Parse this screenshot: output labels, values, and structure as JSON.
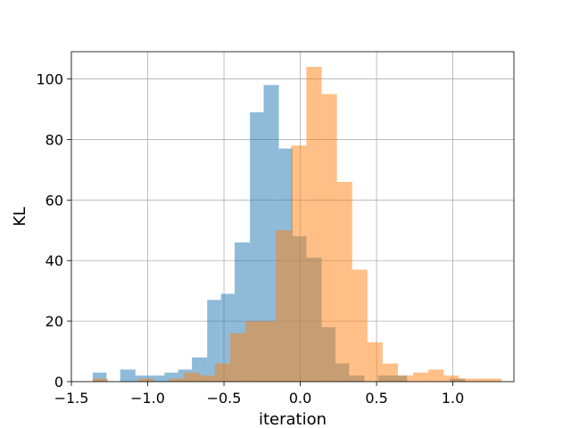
{
  "chart_data": {
    "type": "bar",
    "subtype": "overlapping histogram",
    "title": "",
    "xlabel": "iteration",
    "ylabel": "KL",
    "xlim": [
      -1.5,
      1.4
    ],
    "ylim": [
      0,
      109
    ],
    "xticks": [
      -1.5,
      -1.0,
      -0.5,
      0.0,
      0.5,
      1.0
    ],
    "xtick_labels": [
      "−1.5",
      "−1.0",
      "−0.5",
      "0.0",
      "0.5",
      "1.0"
    ],
    "yticks": [
      0,
      20,
      40,
      60,
      80,
      100
    ],
    "ytick_labels": [
      "0",
      "20",
      "40",
      "60",
      "80",
      "100"
    ],
    "grid": true,
    "legend": "none",
    "bar_opacity": 0.5,
    "series": [
      {
        "color": "#1f77b4",
        "bins": [
          {
            "x0": -1.36,
            "x1": -1.27,
            "value": 3
          },
          {
            "x0": -1.27,
            "x1": -1.18,
            "value": 0
          },
          {
            "x0": -1.18,
            "x1": -1.08,
            "value": 4
          },
          {
            "x0": -1.08,
            "x1": -0.99,
            "value": 2
          },
          {
            "x0": -0.99,
            "x1": -0.89,
            "value": 2
          },
          {
            "x0": -0.89,
            "x1": -0.8,
            "value": 3
          },
          {
            "x0": -0.8,
            "x1": -0.71,
            "value": 4
          },
          {
            "x0": -0.71,
            "x1": -0.61,
            "value": 8
          },
          {
            "x0": -0.61,
            "x1": -0.52,
            "value": 27
          },
          {
            "x0": -0.52,
            "x1": -0.43,
            "value": 29
          },
          {
            "x0": -0.43,
            "x1": -0.33,
            "value": 46
          },
          {
            "x0": -0.33,
            "x1": -0.24,
            "value": 89
          },
          {
            "x0": -0.24,
            "x1": -0.14,
            "value": 98
          },
          {
            "x0": -0.14,
            "x1": -0.05,
            "value": 77
          },
          {
            "x0": -0.05,
            "x1": 0.04,
            "value": 48
          },
          {
            "x0": 0.04,
            "x1": 0.14,
            "value": 41
          },
          {
            "x0": 0.14,
            "x1": 0.23,
            "value": 18
          },
          {
            "x0": 0.23,
            "x1": 0.32,
            "value": 6
          },
          {
            "x0": 0.32,
            "x1": 0.42,
            "value": 2
          },
          {
            "x0": 0.42,
            "x1": 0.51,
            "value": 0
          },
          {
            "x0": 0.51,
            "x1": 0.61,
            "value": 2
          },
          {
            "x0": 0.61,
            "x1": 0.7,
            "value": 2
          },
          {
            "x0": 0.7,
            "x1": 0.79,
            "value": 0
          },
          {
            "x0": 0.79,
            "x1": 0.89,
            "value": 0
          },
          {
            "x0": 0.89,
            "x1": 0.98,
            "value": 0
          },
          {
            "x0": 0.98,
            "x1": 1.08,
            "value": 1
          }
        ]
      },
      {
        "color": "#ff7f0e",
        "bins": [
          {
            "x0": -1.36,
            "x1": -1.26,
            "value": 1
          },
          {
            "x0": -1.26,
            "x1": -1.16,
            "value": 0
          },
          {
            "x0": -1.16,
            "x1": -1.06,
            "value": 0
          },
          {
            "x0": -1.06,
            "x1": -0.96,
            "value": 1
          },
          {
            "x0": -0.96,
            "x1": -0.86,
            "value": 0
          },
          {
            "x0": -0.86,
            "x1": -0.76,
            "value": 1
          },
          {
            "x0": -0.76,
            "x1": -0.66,
            "value": 3
          },
          {
            "x0": -0.66,
            "x1": -0.56,
            "value": 2
          },
          {
            "x0": -0.56,
            "x1": -0.46,
            "value": 6
          },
          {
            "x0": -0.46,
            "x1": -0.36,
            "value": 16
          },
          {
            "x0": -0.36,
            "x1": -0.26,
            "value": 20
          },
          {
            "x0": -0.26,
            "x1": -0.16,
            "value": 20
          },
          {
            "x0": -0.16,
            "x1": -0.06,
            "value": 50
          },
          {
            "x0": -0.06,
            "x1": 0.04,
            "value": 78
          },
          {
            "x0": 0.04,
            "x1": 0.14,
            "value": 104
          },
          {
            "x0": 0.14,
            "x1": 0.24,
            "value": 95
          },
          {
            "x0": 0.24,
            "x1": 0.34,
            "value": 66
          },
          {
            "x0": 0.34,
            "x1": 0.44,
            "value": 37
          },
          {
            "x0": 0.44,
            "x1": 0.54,
            "value": 13
          },
          {
            "x0": 0.54,
            "x1": 0.64,
            "value": 6
          },
          {
            "x0": 0.64,
            "x1": 0.74,
            "value": 2
          },
          {
            "x0": 0.74,
            "x1": 0.84,
            "value": 3
          },
          {
            "x0": 0.84,
            "x1": 0.94,
            "value": 4
          },
          {
            "x0": 0.94,
            "x1": 1.04,
            "value": 2
          },
          {
            "x0": 1.04,
            "x1": 1.14,
            "value": 1
          },
          {
            "x0": 1.14,
            "x1": 1.24,
            "value": 1
          },
          {
            "x0": 1.24,
            "x1": 1.32,
            "value": 1
          }
        ]
      }
    ]
  }
}
